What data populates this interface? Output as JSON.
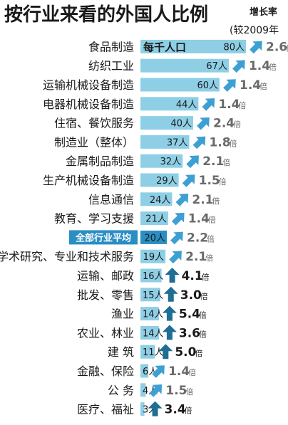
{
  "chart_data": {
    "type": "bar",
    "title": "按行业来看的外国人比例",
    "unit_label": "每千人口",
    "growth_header": "增长率",
    "growth_base": "(较2009年",
    "value_suffix": "人",
    "growth_suffix": "倍",
    "highlight_category": "全部行业平均",
    "xlim": [
      0,
      80
    ],
    "colors": {
      "bar": "#8ecfe6",
      "highlight": "#2a8ec3",
      "arrow_light": "#3ea0d2",
      "arrow_dark": "#1f6e94"
    },
    "rows": [
      {
        "category": "食品制造",
        "value": 80,
        "growth": 2.6
      },
      {
        "category": "纺织工业",
        "value": 67,
        "growth": 1.4
      },
      {
        "category": "运输机械设备制造",
        "value": 60,
        "growth": 1.4
      },
      {
        "category": "电器机械设备制造",
        "value": 44,
        "growth": 1.4
      },
      {
        "category": "住宿、餐饮服务",
        "value": 40,
        "growth": 2.4
      },
      {
        "category": "制造业（整体）",
        "value": 37,
        "growth": 1.8
      },
      {
        "category": "金属制品制造",
        "value": 32,
        "growth": 2.1
      },
      {
        "category": "生产机械设备制造",
        "value": 29,
        "growth": 1.5
      },
      {
        "category": "信息通信",
        "value": 24,
        "growth": 2.1
      },
      {
        "category": "教育、学习支援",
        "value": 21,
        "growth": 1.4
      },
      {
        "category": "全部行业平均",
        "value": 20,
        "growth": 2.2
      },
      {
        "category": "学术研究、专业和技术服务",
        "value": 19,
        "growth": 2.1
      },
      {
        "category": "运输、邮政",
        "value": 16,
        "growth": 4.1
      },
      {
        "category": "批发、零售",
        "value": 15,
        "growth": 3.0
      },
      {
        "category": "渔业",
        "value": 14,
        "growth": 5.4
      },
      {
        "category": "农业、林业",
        "value": 14,
        "growth": 3.6
      },
      {
        "category": "建 筑",
        "value": 11,
        "growth": 5.0
      },
      {
        "category": "金融、保险",
        "value": 6,
        "growth": 1.4
      },
      {
        "category": "公 务",
        "value": 4,
        "growth": 1.5
      },
      {
        "category": "医疗、福祉",
        "value": 3,
        "growth": 3.4
      }
    ]
  }
}
